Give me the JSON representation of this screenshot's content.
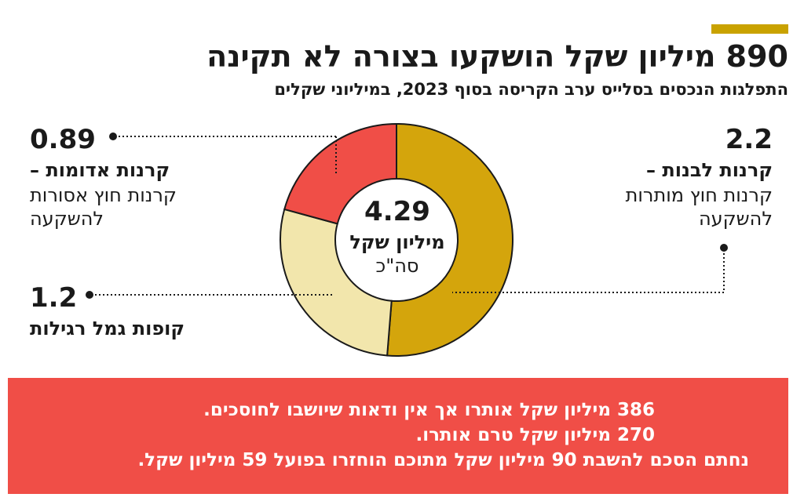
{
  "title": "890 מיליון שקל הושקעו בצורה לא תקינה",
  "subtitle": "התפלגות הנכסים בסלייס ערב הקריסה בסוף 2023, במיליוני שקלים",
  "chart_data": {
    "type": "pie",
    "total": {
      "value": "4.29",
      "unit": "מיליון שקל",
      "note": "סה\"כ"
    },
    "slices": [
      {
        "value": 2.2,
        "value_label": "2.2",
        "label_bold": "קרנות לבנות –",
        "label_sub": "קרנות חוץ מותרות להשקעה",
        "color": "#d4a50c"
      },
      {
        "value": 1.2,
        "value_label": "1.2",
        "label_bold": "קופות גמל רגילות",
        "label_sub": "",
        "color": "#f2e6ac"
      },
      {
        "value": 0.89,
        "value_label": "0.89",
        "label_bold": "קרנות אדומות –",
        "label_sub": "קרנות חוץ אסורות להשקעה",
        "color": "#f04e47"
      }
    ]
  },
  "footer": {
    "lines": [
      "386 מיליון שקל אותרו אך אין ודאות שיושבו לחוסכים.",
      "270 מיליון שקל טרם אותרו.",
      "נחתם הסכם להשבת 90 מיליון שקל מתוכם הוחזרו בפועל 59 מיליון שקל."
    ],
    "background": "#f04e47"
  },
  "accent_color": "#c9a200"
}
